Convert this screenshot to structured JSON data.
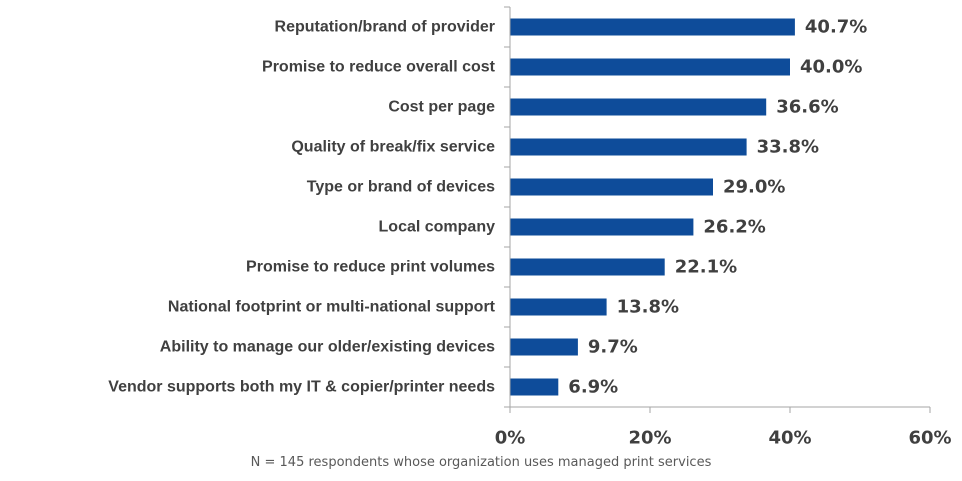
{
  "chart_data": {
    "type": "bar",
    "orientation": "horizontal",
    "categories": [
      "Reputation/brand of provider",
      "Promise to reduce overall cost",
      "Cost per page",
      "Quality of break/fix service",
      "Type or brand of devices",
      "Local company",
      "Promise to reduce print volumes",
      "National footprint or multi-national support",
      "Ability to manage our older/existing devices",
      "Vendor supports both my IT & copier/printer needs"
    ],
    "values": [
      40.7,
      40.0,
      36.6,
      33.8,
      29.0,
      26.2,
      22.1,
      13.8,
      9.7,
      6.9
    ],
    "value_labels": [
      "40.7%",
      "40.0%",
      "36.6%",
      "33.8%",
      "29.0%",
      "26.2%",
      "22.1%",
      "13.8%",
      "9.7%",
      "6.9%"
    ],
    "xlim": [
      0,
      60
    ],
    "x_ticks": [
      0,
      20,
      40,
      60
    ],
    "x_tick_labels": [
      "0%",
      "20%",
      "40%",
      "60%"
    ],
    "grid": false,
    "bar_color": "#0E4C9A",
    "axis_color": "#A6A6A6",
    "note": "N = 145 respondents whose organization uses managed print services"
  }
}
